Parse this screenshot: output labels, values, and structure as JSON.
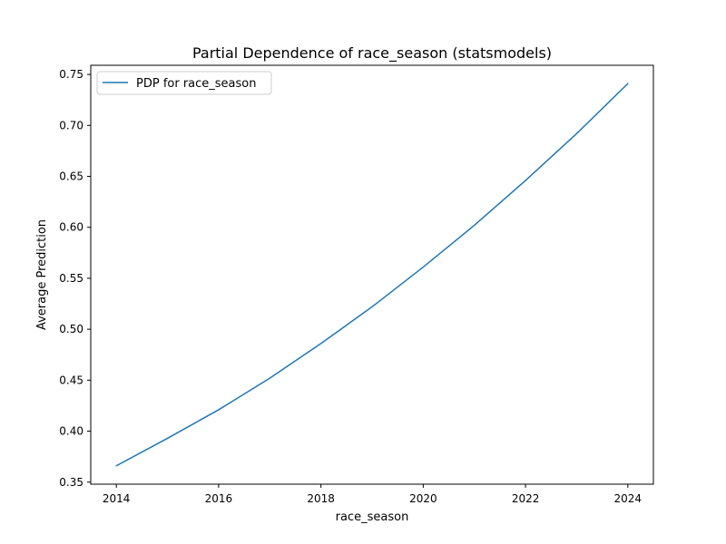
{
  "chart_data": {
    "type": "line",
    "title": "Partial Dependence of race_season (statsmodels)",
    "xlabel": "race_season",
    "ylabel": "Average Prediction",
    "xlim": [
      2013.5,
      2024.5
    ],
    "ylim": [
      0.348,
      0.759
    ],
    "x_ticks": [
      2014,
      2016,
      2018,
      2020,
      2022,
      2024
    ],
    "y_ticks": [
      0.35,
      0.4,
      0.45,
      0.5,
      0.55,
      0.6,
      0.65,
      0.7,
      0.75
    ],
    "x_tick_labels": [
      "2014",
      "2016",
      "2018",
      "2020",
      "2022",
      "2024"
    ],
    "y_tick_labels": [
      "0.35",
      "0.40",
      "0.45",
      "0.50",
      "0.55",
      "0.60",
      "0.65",
      "0.70",
      "0.75"
    ],
    "grid": false,
    "legend_position": "top-left",
    "series": [
      {
        "name": "PDP for race_season",
        "color": "#1f77b4",
        "x": [
          2014,
          2015,
          2016,
          2017,
          2018,
          2019,
          2020,
          2021,
          2022,
          2023,
          2024
        ],
        "y": [
          0.366,
          0.393,
          0.421,
          0.452,
          0.486,
          0.522,
          0.561,
          0.602,
          0.646,
          0.692,
          0.741
        ]
      }
    ]
  }
}
